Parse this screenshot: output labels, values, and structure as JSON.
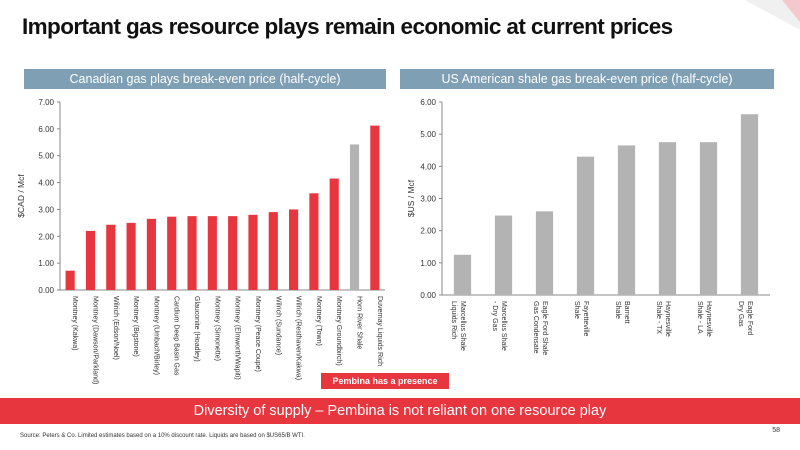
{
  "slide": {
    "title": "Important gas resource plays remain economic at current prices",
    "banner": "Diversity of supply – Pembina is not reliant on one resource play",
    "presence_label": "Pembina has a presence",
    "page_number": "58",
    "source": "Source: Peters & Co. Limited estimates based on a 10% discount rate. Liquids are based on $US65/B WTI."
  },
  "colors": {
    "red": "#e8363f",
    "grey": "#b3b3b3",
    "header": "#7f9fb4",
    "deco_light": "#f0f0f0",
    "deco_pink": "#f5c9cb"
  },
  "chart_data": [
    {
      "type": "bar",
      "title": "Canadian gas plays break-even price (half-cycle)",
      "ylabel": "$CAD / Mcf",
      "ylim": [
        0,
        7
      ],
      "yticks": [
        "0.00",
        "1.00",
        "2.00",
        "3.00",
        "4.00",
        "5.00",
        "6.00",
        "7.00"
      ],
      "categories": [
        "Montney (Kakwa)",
        "Montney (Dawson/Parkland)",
        "Wilrich (Edson/Noel)",
        "Montney (Bigstone)",
        "Montney (Umbach/Birley)",
        "Cardium Deep Basin Gas",
        "Glauconite (Hoadley)",
        "Montney (Simonette)",
        "Montney (Elmworth/Wapiti)",
        "Montney (Peace Coupe)",
        "Wilrich (Sundance)",
        "Wilrich (Resthaven/Kakwa)",
        "Montney (Town)",
        "Montney Groundbirch)",
        "Horn River Shale",
        "Duvernay Liquids Rich"
      ],
      "values": [
        0.72,
        2.2,
        2.43,
        2.5,
        2.65,
        2.73,
        2.75,
        2.75,
        2.75,
        2.8,
        2.9,
        3.0,
        3.6,
        4.15,
        5.42,
        6.12
      ],
      "bar_colors": [
        "#e8363f",
        "#e8363f",
        "#e8363f",
        "#e8363f",
        "#e8363f",
        "#e8363f",
        "#e8363f",
        "#e8363f",
        "#e8363f",
        "#e8363f",
        "#e8363f",
        "#e8363f",
        "#e8363f",
        "#e8363f",
        "#b3b3b3",
        "#e8363f"
      ],
      "grid": false
    },
    {
      "type": "bar",
      "title": "US American shale gas break-even price (half-cycle)",
      "ylabel": "$US / Mcf",
      "ylim": [
        0,
        6
      ],
      "yticks": [
        "0.00",
        "1.00",
        "2.00",
        "3.00",
        "4.00",
        "5.00",
        "6.00"
      ],
      "categories": [
        "Marcellus Shale\nLiquids Rich",
        "Marcellus Shale\n- Dry Gas",
        "Eagle Ford Shale\nGas Condensate",
        "Fayetteville\nShale",
        "Barnett\nShale",
        "Haynesville\nShale - TX",
        "Haynesville\nShale - LA",
        "Eagle Ford\nDry Gas"
      ],
      "values": [
        1.25,
        2.47,
        2.6,
        4.3,
        4.65,
        4.75,
        4.75,
        5.62
      ],
      "bar_colors": [
        "#b3b3b3",
        "#b3b3b3",
        "#b3b3b3",
        "#b3b3b3",
        "#b3b3b3",
        "#b3b3b3",
        "#b3b3b3",
        "#b3b3b3"
      ],
      "grid": false
    }
  ]
}
